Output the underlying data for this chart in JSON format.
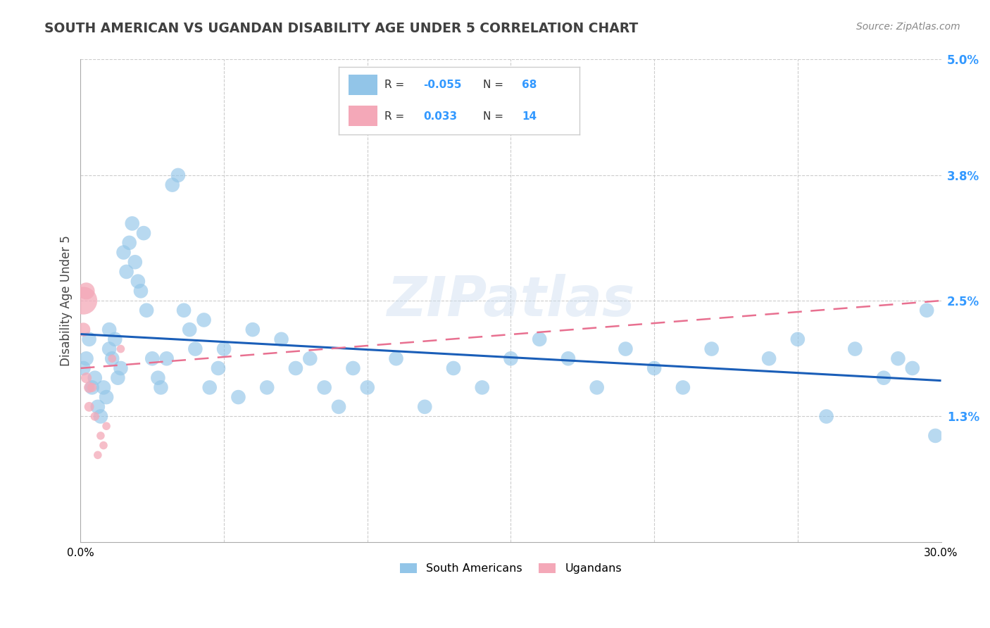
{
  "title": "SOUTH AMERICAN VS UGANDAN DISABILITY AGE UNDER 5 CORRELATION CHART",
  "source": "Source: ZipAtlas.com",
  "ylabel": "Disability Age Under 5",
  "watermark": "ZIPatlas",
  "blue_color": "#92c5e8",
  "pink_color": "#f4a8b8",
  "blue_line_color": "#1a5eb8",
  "pink_line_color": "#e87090",
  "title_color": "#404040",
  "grid_color": "#cccccc",
  "xlim": [
    0.0,
    0.3
  ],
  "ylim": [
    0.0,
    0.05
  ],
  "ytick_vals": [
    0.0,
    0.013,
    0.025,
    0.038,
    0.05
  ],
  "ytick_labels": [
    "",
    "1.3%",
    "2.5%",
    "3.8%",
    "5.0%"
  ],
  "xtick_vals": [
    0.0,
    0.05,
    0.1,
    0.15,
    0.2,
    0.25,
    0.3
  ],
  "xtick_labels": [
    "0.0%",
    "",
    "",
    "",
    "",
    "",
    "30.0%"
  ],
  "legend_blue_r": "-0.055",
  "legend_blue_n": "68",
  "legend_pink_r": "0.033",
  "legend_pink_n": "14",
  "south_americans_x": [
    0.001,
    0.002,
    0.003,
    0.004,
    0.005,
    0.006,
    0.007,
    0.008,
    0.009,
    0.01,
    0.01,
    0.011,
    0.012,
    0.013,
    0.014,
    0.015,
    0.016,
    0.017,
    0.018,
    0.019,
    0.02,
    0.021,
    0.022,
    0.023,
    0.025,
    0.027,
    0.028,
    0.03,
    0.032,
    0.034,
    0.036,
    0.038,
    0.04,
    0.043,
    0.045,
    0.048,
    0.05,
    0.055,
    0.06,
    0.065,
    0.07,
    0.075,
    0.08,
    0.085,
    0.09,
    0.095,
    0.1,
    0.11,
    0.12,
    0.13,
    0.14,
    0.15,
    0.16,
    0.17,
    0.18,
    0.19,
    0.2,
    0.21,
    0.22,
    0.24,
    0.25,
    0.26,
    0.27,
    0.28,
    0.285,
    0.29,
    0.295,
    0.298
  ],
  "south_americans_y": [
    0.018,
    0.019,
    0.021,
    0.016,
    0.017,
    0.014,
    0.013,
    0.016,
    0.015,
    0.022,
    0.02,
    0.019,
    0.021,
    0.017,
    0.018,
    0.03,
    0.028,
    0.031,
    0.033,
    0.029,
    0.027,
    0.026,
    0.032,
    0.024,
    0.019,
    0.017,
    0.016,
    0.019,
    0.037,
    0.038,
    0.024,
    0.022,
    0.02,
    0.023,
    0.016,
    0.018,
    0.02,
    0.015,
    0.022,
    0.016,
    0.021,
    0.018,
    0.019,
    0.016,
    0.014,
    0.018,
    0.016,
    0.019,
    0.014,
    0.018,
    0.016,
    0.019,
    0.021,
    0.019,
    0.016,
    0.02,
    0.018,
    0.016,
    0.02,
    0.019,
    0.021,
    0.013,
    0.02,
    0.017,
    0.019,
    0.018,
    0.024,
    0.011
  ],
  "ugandans_x": [
    0.001,
    0.001,
    0.002,
    0.002,
    0.003,
    0.003,
    0.004,
    0.005,
    0.006,
    0.007,
    0.008,
    0.009,
    0.011,
    0.014
  ],
  "ugandans_y": [
    0.025,
    0.022,
    0.026,
    0.017,
    0.016,
    0.014,
    0.016,
    0.013,
    0.009,
    0.011,
    0.01,
    0.012,
    0.019,
    0.02
  ],
  "ugandans_size": [
    800,
    200,
    300,
    120,
    120,
    100,
    90,
    80,
    70,
    70,
    70,
    70,
    70,
    70
  ]
}
